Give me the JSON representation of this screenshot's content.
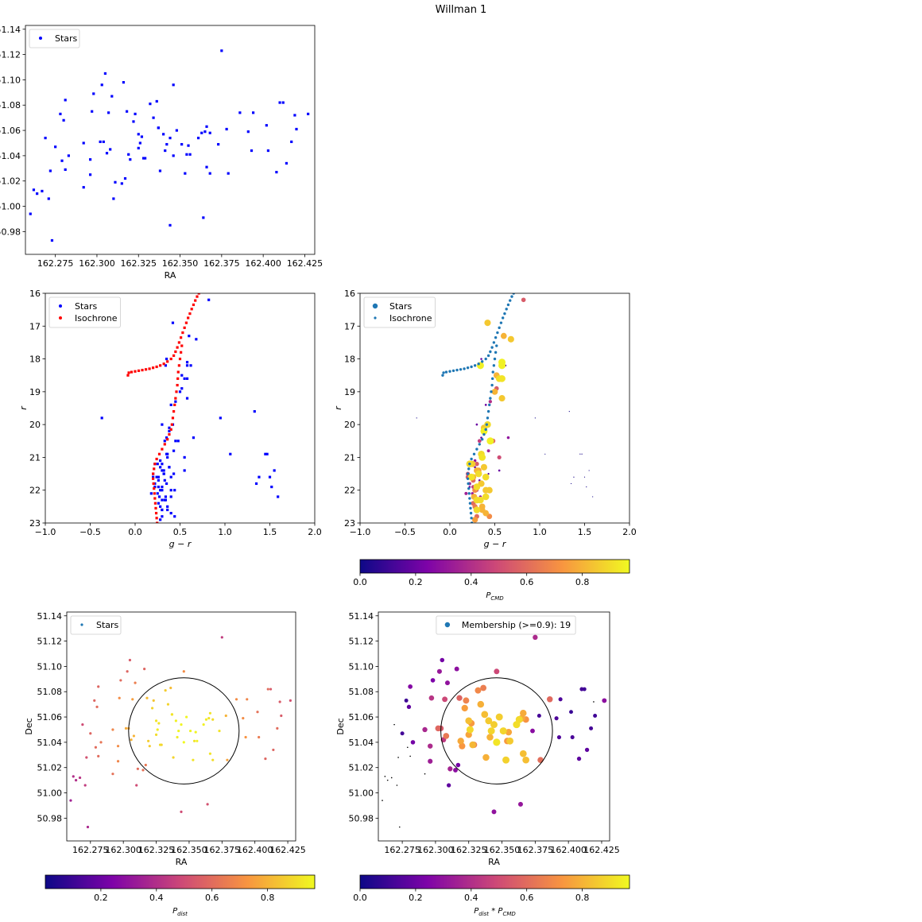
{
  "figure": {
    "suptitle": "Willman 1"
  },
  "colors": {
    "stars_blue": "#0000ff",
    "isochrone_red": "#ff0000",
    "tab_blue": "#1f77b4",
    "colormap": "plasma"
  },
  "chart_data": [
    {
      "id": "sky",
      "type": "scatter",
      "xlabel": "RA",
      "ylabel": "Dec",
      "xlim": [
        162.257,
        162.431
      ],
      "ylim": [
        50.962,
        51.143
      ],
      "xticks": [
        "162.275",
        "162.300",
        "162.325",
        "162.350",
        "162.375",
        "162.400",
        "162.425"
      ],
      "yticks": [
        "50.98",
        "51.00",
        "51.02",
        "51.04",
        "51.06",
        "51.08",
        "51.10",
        "51.12",
        "51.14"
      ],
      "legend": {
        "position": "top-left",
        "entries": [
          "Stars"
        ]
      },
      "series": [
        {
          "name": "Stars",
          "color": "#0000ff"
        }
      ]
    },
    {
      "id": "cmd",
      "type": "scatter",
      "xlabel": "g − r",
      "ylabel": "r",
      "xlim": [
        -1.0,
        2.0
      ],
      "ylim": [
        23,
        16
      ],
      "y_inverted": true,
      "xticks": [
        "−1.0",
        "−0.5",
        "0.0",
        "0.5",
        "1.0",
        "1.5",
        "2.0"
      ],
      "yticks": [
        "16",
        "17",
        "18",
        "19",
        "20",
        "21",
        "22",
        "23"
      ],
      "legend": {
        "position": "top-left",
        "entries": [
          "Stars",
          "Isochrone"
        ]
      },
      "series": [
        {
          "name": "Stars",
          "color": "#0000ff"
        },
        {
          "name": "Isochrone",
          "color": "#ff0000"
        }
      ]
    },
    {
      "id": "cmd_pcmd",
      "type": "scatter",
      "xlabel": "g − r",
      "ylabel": "r",
      "xlim": [
        -1.0,
        2.0
      ],
      "ylim": [
        23,
        16
      ],
      "y_inverted": true,
      "xticks": [
        "−1.0",
        "−0.5",
        "0.0",
        "0.5",
        "1.0",
        "1.5",
        "2.0"
      ],
      "yticks": [
        "16",
        "17",
        "18",
        "19",
        "20",
        "21",
        "22",
        "23"
      ],
      "legend": {
        "position": "top-left",
        "entries": [
          "Stars",
          "Isochrone"
        ]
      },
      "colorbar": {
        "label": "P",
        "label_sub": "CMD",
        "range": [
          0.0,
          0.97
        ],
        "ticks": [
          "0.0",
          "0.2",
          "0.4",
          "0.6",
          "0.8"
        ]
      },
      "series": [
        {
          "name": "Stars",
          "color_by": "P_CMD"
        },
        {
          "name": "Isochrone",
          "color": "#1f77b4"
        }
      ]
    },
    {
      "id": "sky_pdist",
      "type": "scatter",
      "xlabel": "RA",
      "ylabel": "Dec",
      "xlim": [
        162.257,
        162.431
      ],
      "ylim": [
        50.962,
        51.143
      ],
      "xticks": [
        "162.275",
        "162.300",
        "162.325",
        "162.350",
        "162.375",
        "162.400",
        "162.425"
      ],
      "yticks": [
        "50.98",
        "51.00",
        "51.02",
        "51.04",
        "51.06",
        "51.08",
        "51.10",
        "51.12",
        "51.14"
      ],
      "legend": {
        "position": "top-left",
        "entries": [
          "Stars"
        ]
      },
      "circle": {
        "center": [
          162.346,
          51.049
        ],
        "radius_deg": 0.042
      },
      "colorbar": {
        "label": "P",
        "label_sub": "dist",
        "range": [
          0.0,
          0.97
        ],
        "ticks": [
          "0.2",
          "0.4",
          "0.6",
          "0.8"
        ]
      },
      "series": [
        {
          "name": "Stars",
          "color_by": "P_dist"
        }
      ]
    },
    {
      "id": "sky_members",
      "type": "scatter",
      "xlabel": "RA",
      "ylabel": "Dec",
      "xlim": [
        162.257,
        162.431
      ],
      "ylim": [
        50.962,
        51.143
      ],
      "xticks": [
        "162.275",
        "162.300",
        "162.325",
        "162.350",
        "162.375",
        "162.400",
        "162.425"
      ],
      "yticks": [
        "50.98",
        "51.00",
        "51.02",
        "51.04",
        "51.06",
        "51.08",
        "51.10",
        "51.12",
        "51.14"
      ],
      "legend": {
        "position": "top-center",
        "entries": [
          "Membership (>=0.9): 19"
        ]
      },
      "circle": {
        "center": [
          162.346,
          51.049
        ],
        "radius_deg": 0.042
      },
      "colorbar": {
        "label": "P",
        "label_sub": "dist",
        "label_mid": " * P",
        "label_sub2": "CMD",
        "range": [
          0.0,
          0.97
        ],
        "ticks": [
          "0.0",
          "0.2",
          "0.4",
          "0.6",
          "0.8"
        ]
      },
      "series": [
        {
          "name": "Membership (>=0.9): 19",
          "color_by": "P_dist*P_CMD"
        }
      ]
    }
  ],
  "stars": {
    "columns": [
      "ra",
      "dec",
      "g_r",
      "r",
      "p_cmd",
      "p_dist"
    ],
    "rows": [
      [
        162.26,
        50.994,
        1.45,
        20.9,
        0.03,
        0.35
      ],
      [
        162.262,
        51.013,
        1.5,
        21.6,
        0.02,
        0.4
      ],
      [
        162.264,
        51.01,
        1.47,
        20.9,
        0.03,
        0.4
      ],
      [
        162.267,
        51.012,
        1.35,
        21.8,
        0.02,
        0.42
      ],
      [
        162.269,
        51.054,
        1.55,
        21.4,
        0.02,
        0.5
      ],
      [
        162.271,
        51.006,
        1.52,
        21.9,
        0.02,
        0.45
      ],
      [
        162.272,
        51.028,
        1.38,
        21.6,
        0.03,
        0.52
      ],
      [
        162.273,
        50.973,
        1.59,
        22.2,
        0.02,
        0.38
      ],
      [
        162.275,
        51.047,
        0.4,
        19.4,
        0.2,
        0.58
      ],
      [
        162.278,
        51.073,
        0.35,
        18.0,
        0.18,
        0.58
      ],
      [
        162.279,
        51.036,
        1.33,
        19.6,
        0.02,
        0.6
      ],
      [
        162.28,
        51.068,
        0.28,
        21.1,
        0.3,
        0.6
      ],
      [
        162.281,
        51.084,
        0.33,
        20.5,
        0.45,
        0.58
      ],
      [
        162.281,
        51.029,
        1.06,
        20.9,
        0.02,
        0.6
      ],
      [
        162.283,
        51.04,
        0.43,
        20.8,
        0.35,
        0.63
      ],
      [
        162.292,
        51.05,
        0.52,
        18.9,
        0.55,
        0.68
      ],
      [
        162.292,
        51.015,
        0.95,
        19.8,
        0.02,
        0.62
      ],
      [
        162.296,
        51.037,
        0.3,
        21.2,
        0.55,
        0.7
      ],
      [
        162.296,
        51.025,
        0.55,
        21.0,
        0.5,
        0.68
      ],
      [
        162.297,
        51.075,
        0.26,
        21.7,
        0.6,
        0.7
      ],
      [
        162.298,
        51.089,
        0.45,
        19.3,
        0.4,
        0.6
      ],
      [
        162.302,
        51.051,
        0.32,
        21.4,
        0.75,
        0.78
      ],
      [
        162.303,
        51.096,
        0.2,
        21.6,
        0.55,
        0.58
      ],
      [
        162.304,
        51.051,
        0.44,
        22.8,
        0.7,
        0.78
      ],
      [
        162.305,
        51.105,
        0.3,
        22.0,
        0.4,
        0.55
      ],
      [
        162.306,
        51.042,
        0.38,
        21.3,
        0.55,
        0.8
      ],
      [
        162.307,
        51.074,
        0.28,
        22.5,
        0.65,
        0.75
      ],
      [
        162.308,
        51.045,
        0.52,
        18.5,
        0.8,
        0.8
      ],
      [
        162.309,
        51.087,
        0.33,
        22.3,
        0.45,
        0.66
      ],
      [
        162.31,
        51.006,
        0.22,
        21.8,
        0.35,
        0.5
      ],
      [
        162.311,
        51.019,
        0.48,
        20.5,
        0.6,
        0.6
      ],
      [
        162.315,
        51.018,
        0.26,
        21.9,
        0.45,
        0.62
      ],
      [
        162.316,
        51.098,
        0.2,
        21.5,
        0.5,
        0.58
      ],
      [
        162.317,
        51.022,
        0.18,
        22.1,
        0.35,
        0.64
      ],
      [
        162.318,
        51.075,
        0.3,
        22.6,
        0.7,
        0.82
      ],
      [
        162.319,
        51.041,
        0.55,
        18.6,
        0.9,
        0.86
      ],
      [
        162.32,
        51.037,
        0.38,
        20.1,
        0.85,
        0.86
      ],
      [
        162.322,
        51.067,
        0.4,
        22.0,
        0.85,
        0.88
      ],
      [
        162.323,
        51.073,
        0.26,
        21.6,
        0.8,
        0.84
      ],
      [
        162.325,
        51.057,
        0.32,
        21.5,
        0.9,
        0.92
      ],
      [
        162.325,
        51.046,
        0.35,
        21.8,
        0.85,
        0.9
      ],
      [
        162.326,
        51.05,
        0.34,
        18.2,
        0.95,
        0.94
      ],
      [
        162.327,
        51.055,
        0.27,
        22.2,
        0.8,
        0.92
      ],
      [
        162.328,
        51.038,
        0.3,
        21.9,
        0.9,
        0.9
      ],
      [
        162.329,
        51.038,
        0.28,
        22.9,
        0.75,
        0.88
      ],
      [
        162.332,
        51.081,
        0.36,
        22.5,
        0.8,
        0.86
      ],
      [
        162.334,
        51.07,
        0.35,
        20.9,
        0.9,
        0.88
      ],
      [
        162.336,
        51.083,
        0.3,
        21.4,
        0.8,
        0.82
      ],
      [
        162.337,
        51.062,
        0.38,
        21.3,
        0.85,
        0.92
      ],
      [
        162.337,
        51.062,
        0.22,
        21.2,
        0.9,
        0.92
      ],
      [
        162.338,
        51.028,
        0.42,
        20.0,
        0.9,
        0.88
      ],
      [
        162.34,
        51.057,
        0.3,
        22.6,
        0.9,
        0.95
      ],
      [
        162.341,
        51.044,
        0.44,
        22.0,
        0.85,
        0.94
      ],
      [
        162.342,
        51.049,
        0.24,
        21.6,
        0.92,
        0.96
      ],
      [
        162.344,
        50.985,
        0.26,
        22.4,
        0.6,
        0.5
      ],
      [
        162.344,
        51.054,
        0.34,
        22.3,
        0.9,
        0.96
      ],
      [
        162.346,
        51.04,
        0.38,
        20.2,
        0.95,
        0.97
      ],
      [
        162.346,
        51.096,
        0.28,
        22.0,
        0.7,
        0.7
      ],
      [
        162.348,
        51.06,
        0.4,
        21.6,
        0.9,
        0.96
      ],
      [
        162.351,
        51.049,
        0.36,
        21.0,
        0.92,
        0.96
      ],
      [
        162.353,
        51.026,
        0.45,
        20.5,
        0.95,
        0.92
      ],
      [
        162.354,
        51.041,
        0.5,
        19.0,
        0.8,
        0.92
      ],
      [
        162.355,
        51.048,
        0.6,
        17.3,
        0.8,
        0.96
      ],
      [
        162.356,
        51.041,
        0.3,
        22.3,
        0.9,
        0.95
      ],
      [
        162.361,
        51.054,
        0.58,
        18.1,
        0.95,
        0.95
      ],
      [
        162.363,
        51.058,
        0.58,
        18.2,
        0.95,
        0.94
      ],
      [
        162.364,
        50.991,
        0.3,
        22.8,
        0.6,
        0.52
      ],
      [
        162.365,
        51.059,
        0.25,
        21.2,
        0.85,
        0.92
      ],
      [
        162.366,
        51.063,
        0.42,
        16.9,
        0.85,
        0.92
      ],
      [
        162.366,
        51.031,
        0.4,
        22.2,
        0.9,
        0.92
      ],
      [
        162.368,
        51.026,
        0.58,
        18.6,
        0.92,
        0.9
      ],
      [
        162.368,
        51.058,
        0.36,
        22.6,
        0.8,
        0.9
      ],
      [
        162.373,
        51.049,
        0.65,
        20.4,
        0.3,
        0.92
      ],
      [
        162.375,
        51.123,
        0.58,
        19.2,
        0.85,
        0.45
      ],
      [
        162.378,
        51.061,
        0.62,
        18.2,
        0.15,
        0.8
      ],
      [
        162.379,
        51.026,
        0.4,
        22.7,
        0.8,
        0.76
      ],
      [
        162.386,
        51.074,
        0.68,
        17.4,
        0.85,
        0.7
      ],
      [
        162.391,
        51.059,
        0.35,
        20.4,
        0.2,
        0.7
      ],
      [
        162.393,
        51.044,
        0.22,
        21.9,
        0.2,
        0.72
      ],
      [
        162.394,
        51.074,
        0.32,
        21.5,
        0.2,
        0.68
      ],
      [
        162.402,
        51.064,
        0.43,
        21.5,
        0.15,
        0.62
      ],
      [
        162.403,
        51.044,
        0.28,
        21.3,
        0.2,
        0.65
      ],
      [
        162.408,
        51.027,
        0.25,
        22.1,
        0.3,
        0.58
      ],
      [
        162.41,
        51.082,
        0.3,
        20.0,
        0.2,
        0.6
      ],
      [
        162.412,
        51.082,
        0.55,
        21.4,
        0.2,
        0.55
      ],
      [
        162.414,
        51.034,
        0.34,
        22.2,
        0.3,
        0.58
      ],
      [
        162.417,
        51.051,
        0.36,
        20.9,
        0.2,
        0.6
      ],
      [
        162.419,
        51.072,
        -0.37,
        19.8,
        0.02,
        0.55
      ],
      [
        162.42,
        51.061,
        0.33,
        21.7,
        0.2,
        0.55
      ],
      [
        162.427,
        51.073,
        0.82,
        16.2,
        0.55,
        0.52
      ]
    ]
  },
  "isochrone": {
    "columns": [
      "g_r",
      "r"
    ],
    "points": [
      [
        -0.08,
        18.5
      ],
      [
        -0.07,
        18.42
      ],
      [
        -0.04,
        18.4
      ],
      [
        0.0,
        18.38
      ],
      [
        0.04,
        18.36
      ],
      [
        0.08,
        18.34
      ],
      [
        0.12,
        18.32
      ],
      [
        0.16,
        18.3
      ],
      [
        0.2,
        18.27
      ],
      [
        0.24,
        18.24
      ],
      [
        0.28,
        18.2
      ],
      [
        0.32,
        18.15
      ],
      [
        0.36,
        18.08
      ],
      [
        0.4,
        18.0
      ],
      [
        0.43,
        17.9
      ],
      [
        0.45,
        17.78
      ],
      [
        0.47,
        17.65
      ],
      [
        0.49,
        17.5
      ],
      [
        0.51,
        17.35
      ],
      [
        0.53,
        17.2
      ],
      [
        0.55,
        17.05
      ],
      [
        0.57,
        16.9
      ],
      [
        0.59,
        16.75
      ],
      [
        0.61,
        16.62
      ],
      [
        0.63,
        16.48
      ],
      [
        0.65,
        16.35
      ],
      [
        0.67,
        16.22
      ],
      [
        0.69,
        16.1
      ],
      [
        0.71,
        16.0
      ],
      [
        0.52,
        17.6
      ],
      [
        0.51,
        17.8
      ],
      [
        0.5,
        18.0
      ],
      [
        0.49,
        18.2
      ],
      [
        0.48,
        18.4
      ],
      [
        0.475,
        18.6
      ],
      [
        0.47,
        18.8
      ],
      [
        0.46,
        19.0
      ],
      [
        0.45,
        19.2
      ],
      [
        0.44,
        19.4
      ],
      [
        0.43,
        19.6
      ],
      [
        0.42,
        19.8
      ],
      [
        0.41,
        20.0
      ],
      [
        0.4,
        20.15
      ],
      [
        0.38,
        20.3
      ],
      [
        0.36,
        20.45
      ],
      [
        0.33,
        20.6
      ],
      [
        0.3,
        20.75
      ],
      [
        0.27,
        20.9
      ],
      [
        0.24,
        21.05
      ],
      [
        0.22,
        21.2
      ],
      [
        0.21,
        21.35
      ],
      [
        0.2,
        21.5
      ],
      [
        0.2,
        21.65
      ],
      [
        0.205,
        21.8
      ],
      [
        0.21,
        21.95
      ],
      [
        0.215,
        22.1
      ],
      [
        0.22,
        22.25
      ],
      [
        0.225,
        22.4
      ],
      [
        0.23,
        22.55
      ],
      [
        0.235,
        22.7
      ],
      [
        0.24,
        22.85
      ],
      [
        0.245,
        23.0
      ]
    ]
  }
}
